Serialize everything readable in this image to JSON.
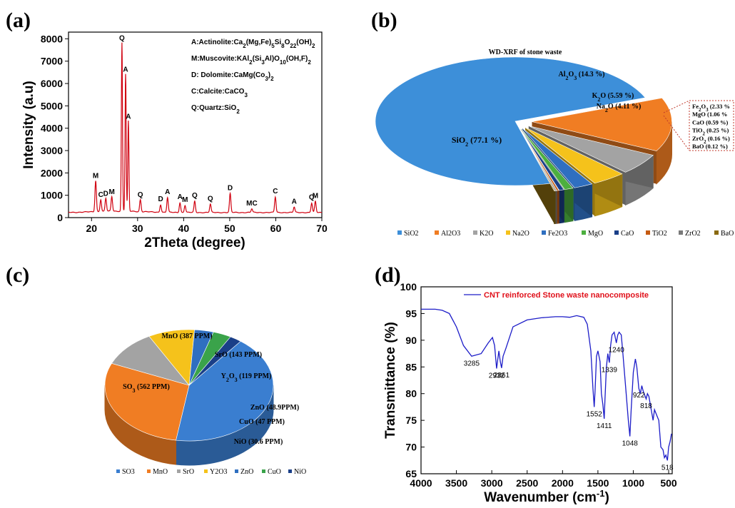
{
  "panels": {
    "a": "(a)",
    "b": "(b)",
    "c": "(c)",
    "d": "(d)"
  },
  "colors": {
    "xrd_line": "#d0000f",
    "ftir_line": "#1c1cc8",
    "ftir_legend_text": "#e0101a",
    "pie_b": [
      "#3d8fd9",
      "#f07d23",
      "#a3a3a3",
      "#f5c21b",
      "#2f6fc0",
      "#4caf3f",
      "#1a3f88",
      "#c55a11",
      "#7a7a7a",
      "#8a6a10"
    ],
    "pie_c": [
      "#3a7ed0",
      "#f07d23",
      "#a3a3a3",
      "#f5c21b",
      "#2f6fc0",
      "#3aa34a",
      "#1a3f88"
    ]
  },
  "chart_data": [
    {
      "type": "line",
      "panel": "a",
      "xlabel": "2Theta (degree)",
      "ylabel": "Intensity (a.u)",
      "xlim": [
        15,
        70
      ],
      "ylim": [
        0,
        8300
      ],
      "xticks": [
        20,
        30,
        40,
        50,
        60,
        70
      ],
      "yticks": [
        0,
        1000,
        2000,
        3000,
        4000,
        5000,
        6000,
        7000,
        8000
      ],
      "legend": [
        {
          "letter": "A",
          "text": "A:Actinolite:Ca2(Mg,Fe)5Si8O22(OH)2"
        },
        {
          "letter": "M",
          "text": "M:Muscovite:KAl2(Si3Al)O10(OH,F)2"
        },
        {
          "letter": "D",
          "text": "D: Dolomite:CaMg(Co3)2"
        },
        {
          "letter": "C",
          "text": "C:Calcite:CaCO3"
        },
        {
          "letter": "Q",
          "text": "Q:Quartz:SiO2"
        }
      ],
      "peaks": [
        {
          "x": 20.9,
          "y": 1650,
          "label": "M"
        },
        {
          "x": 22.0,
          "y": 800,
          "label": "C"
        },
        {
          "x": 23.1,
          "y": 850,
          "label": "D"
        },
        {
          "x": 24.4,
          "y": 920,
          "label": "M"
        },
        {
          "x": 26.6,
          "y": 7800,
          "label": "Q"
        },
        {
          "x": 27.4,
          "y": 6400,
          "label": "A"
        },
        {
          "x": 28.0,
          "y": 4300,
          "label": "A"
        },
        {
          "x": 30.6,
          "y": 800,
          "label": "Q"
        },
        {
          "x": 35.0,
          "y": 600,
          "label": "D"
        },
        {
          "x": 36.5,
          "y": 920,
          "label": "A"
        },
        {
          "x": 39.2,
          "y": 700,
          "label": "A"
        },
        {
          "x": 40.3,
          "y": 580,
          "label": "M"
        },
        {
          "x": 42.4,
          "y": 760,
          "label": "Q"
        },
        {
          "x": 45.8,
          "y": 630,
          "label": "Q"
        },
        {
          "x": 50.1,
          "y": 1100,
          "label": "D"
        },
        {
          "x": 54.8,
          "y": 420,
          "label": "MC"
        },
        {
          "x": 59.9,
          "y": 950,
          "label": "C"
        },
        {
          "x": 64.0,
          "y": 500,
          "label": "A"
        },
        {
          "x": 67.8,
          "y": 680,
          "label": "Q"
        },
        {
          "x": 68.6,
          "y": 750,
          "label": "M"
        }
      ]
    },
    {
      "type": "pie",
      "panel": "b",
      "title": "WD-XRF of stone waste",
      "categories": [
        "SiO2",
        "Al2O3",
        "K2O",
        "Na2O",
        "Fe2O3",
        "MgO",
        "CaO",
        "TiO2",
        "ZrO2",
        "BaO"
      ],
      "values": [
        77.1,
        14.3,
        5.59,
        4.11,
        2.33,
        1.06,
        0.59,
        0.25,
        0.16,
        0.12
      ],
      "labels": [
        "SiO2  (77.1 %)",
        "Al2O3 (14.3 %)",
        "K2O (5.59 %)",
        "Na2O (4.11 %)",
        "Fe2O3  (2.33 %",
        "MgO  (1.06 %",
        "CaO  (0.59 %)",
        "TiO2  (0.25 %)",
        "ZrO2  (0.16 %)",
        "BaO  (0.12 %)"
      ],
      "legend_placement": "bottom"
    },
    {
      "type": "pie",
      "panel": "c",
      "categories": [
        "SO3",
        "MnO",
        "SrO",
        "Y2O3",
        "ZnO",
        "CuO",
        "NiO"
      ],
      "values": [
        562,
        387,
        143,
        119,
        48.9,
        47,
        30.6
      ],
      "labels": [
        "SO3 (562 PPM)",
        "MnO (387 PPM)",
        "SrO (143 PPM)",
        "Y2O3 (119 PPM)",
        "ZnO (48.9PPM)",
        "CuO (47 PPM)",
        "NiO (30.6 PPM)"
      ],
      "legend_placement": "bottom"
    },
    {
      "type": "line",
      "panel": "d",
      "xlabel": "Wavenumber (cm-1)",
      "ylabel": "Transmittance (%)",
      "xlim": [
        4000,
        450
      ],
      "ylim": [
        65,
        100
      ],
      "xticks": [
        4000,
        3500,
        3000,
        2500,
        2000,
        1500,
        1000,
        500
      ],
      "yticks": [
        65,
        70,
        75,
        80,
        85,
        90,
        95,
        100
      ],
      "series": [
        {
          "name": "CNT reinforced Stone waste nanocomposite",
          "x": [
            4000,
            3800,
            3700,
            3600,
            3500,
            3400,
            3285,
            3150,
            3050,
            2990,
            2960,
            2932,
            2900,
            2880,
            2861,
            2840,
            2800,
            2700,
            2500,
            2300,
            2100,
            2000,
            1900,
            1800,
            1700,
            1650,
            1600,
            1570,
            1552,
            1540,
            1520,
            1500,
            1470,
            1450,
            1430,
            1411,
            1400,
            1380,
            1360,
            1339,
            1320,
            1300,
            1270,
            1240,
            1220,
            1200,
            1170,
            1150,
            1100,
            1070,
            1048,
            1030,
            1000,
            970,
            950,
            922,
            900,
            880,
            860,
            818,
            800,
            780,
            760,
            720,
            700,
            670,
            640,
            610,
            580,
            560,
            540,
            518,
            500,
            480,
            460
          ],
          "y": [
            95.8,
            95.8,
            95.6,
            95.0,
            92.5,
            89.0,
            87.0,
            87.5,
            89.5,
            90.5,
            89.0,
            84.7,
            88.0,
            86.0,
            84.8,
            87.0,
            88.5,
            92.5,
            93.8,
            94.2,
            94.4,
            94.4,
            94.3,
            94.6,
            94.3,
            93.0,
            88.0,
            81.0,
            77.5,
            80.5,
            87.0,
            88.0,
            86.0,
            80.0,
            78.0,
            75.3,
            79.0,
            85.0,
            87.5,
            85.8,
            89.0,
            91.0,
            91.5,
            89.5,
            91.0,
            91.5,
            91.0,
            88.0,
            80.0,
            75.0,
            72.0,
            77.0,
            84.0,
            86.5,
            85.0,
            81.0,
            80.0,
            81.5,
            80.5,
            79.0,
            80.0,
            79.5,
            78.0,
            75.0,
            77.0,
            76.0,
            75.0,
            70.0,
            69.5,
            68.0,
            68.5,
            67.5,
            70.0,
            71.0,
            72.5
          ]
        }
      ],
      "peak_labels": [
        {
          "x": 3285,
          "y": 87.0,
          "label": "3285"
        },
        {
          "x": 2932,
          "y": 84.7,
          "label": "2932"
        },
        {
          "x": 2861,
          "y": 84.8,
          "label": "2861"
        },
        {
          "x": 1552,
          "y": 77.5,
          "label": "1552"
        },
        {
          "x": 1411,
          "y": 75.3,
          "label": "1411"
        },
        {
          "x": 1339,
          "y": 85.8,
          "label": "1339"
        },
        {
          "x": 1240,
          "y": 89.5,
          "label": "1240"
        },
        {
          "x": 1048,
          "y": 72.0,
          "label": "1048"
        },
        {
          "x": 922,
          "y": 81.0,
          "label": "922"
        },
        {
          "x": 818,
          "y": 79.0,
          "label": "818"
        },
        {
          "x": 518,
          "y": 67.5,
          "label": "518"
        }
      ],
      "legend_placement": "top"
    }
  ]
}
